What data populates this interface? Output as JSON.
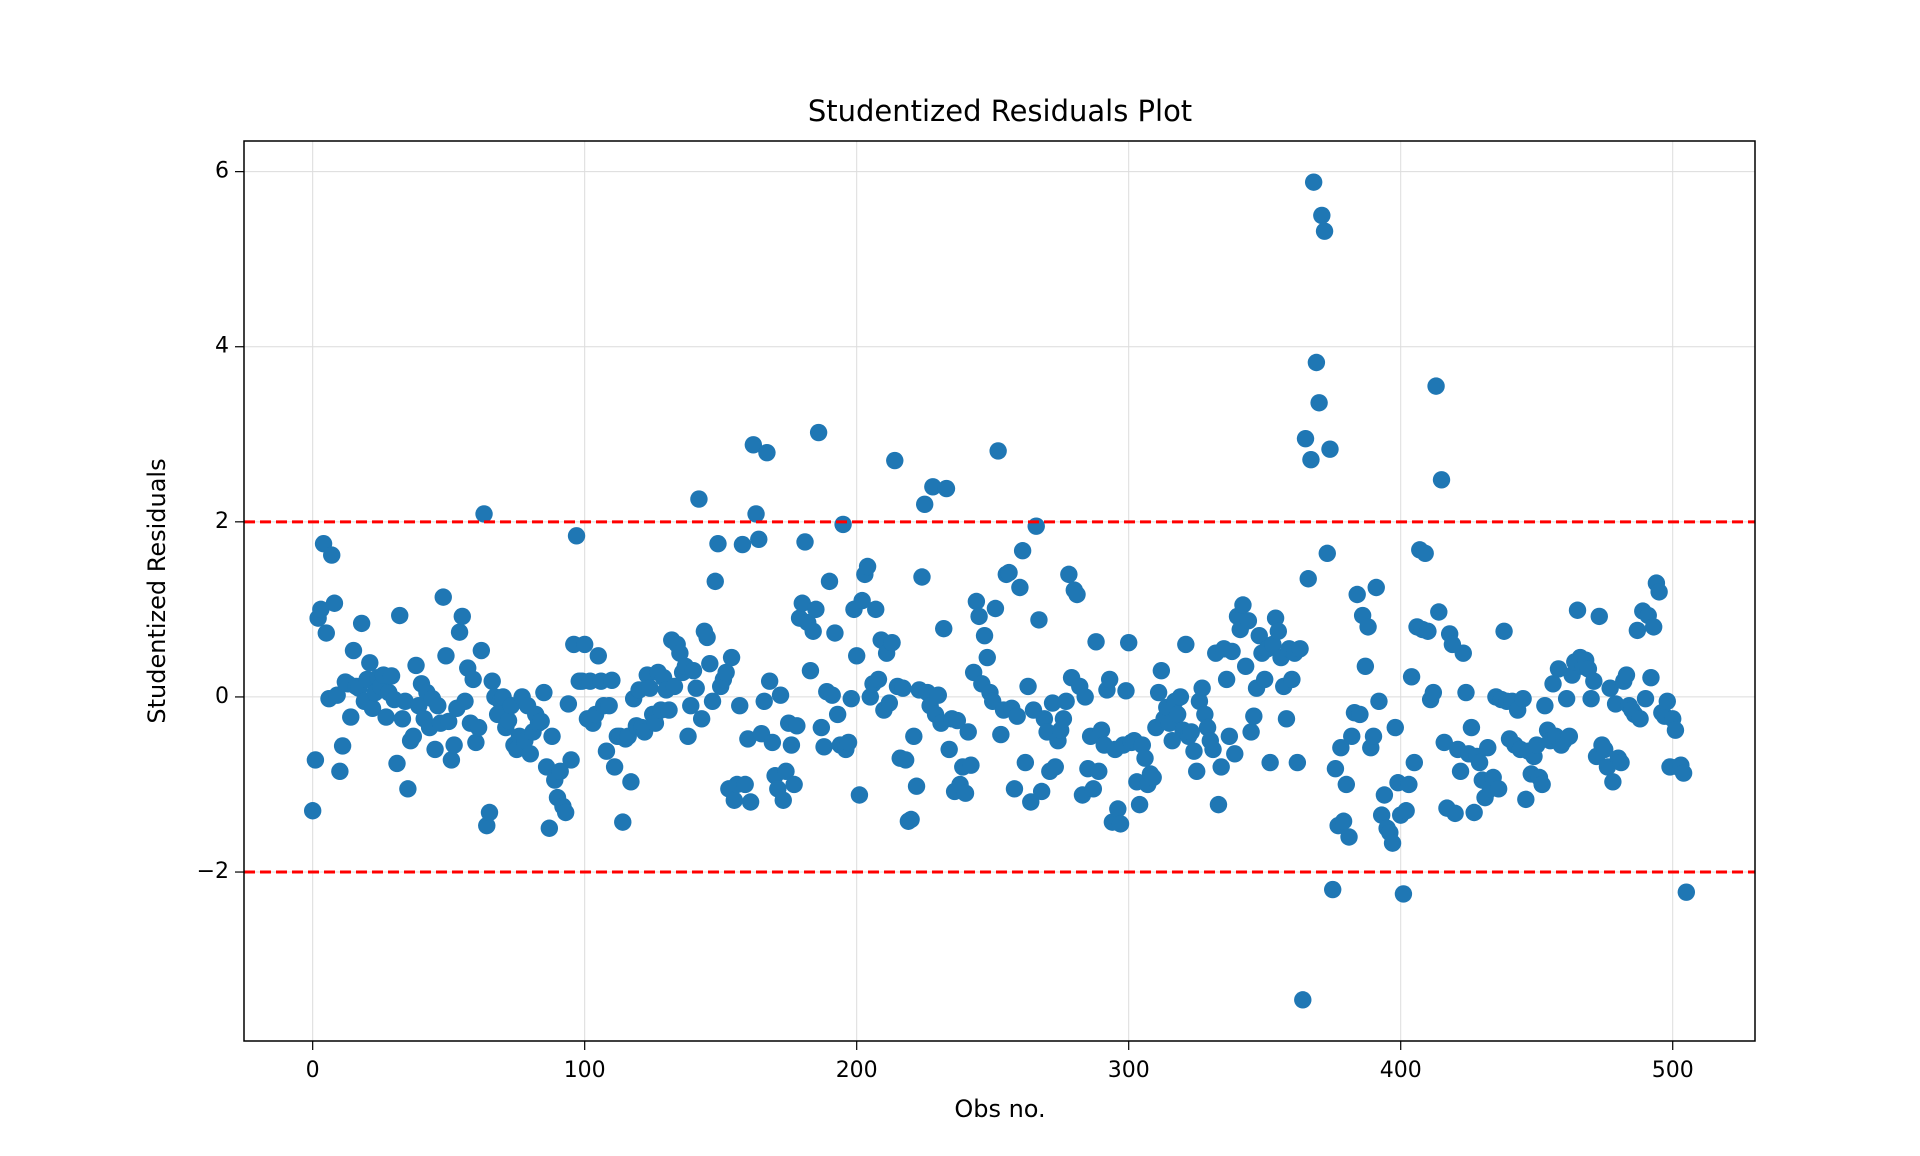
{
  "chart_data": {
    "type": "scatter",
    "title": "Studentized Residuals Plot",
    "xlabel": "Obs no.",
    "ylabel": "Studentized Residuals",
    "color": "#1f77b4",
    "grid": true,
    "xlim": [
      -25.25,
      530.25
    ],
    "ylim": [
      -3.93,
      6.35
    ],
    "xticks": [
      0,
      100,
      200,
      300,
      400,
      500
    ],
    "yticks": [
      {
        "value": -2,
        "label": "−2"
      },
      0,
      2,
      4,
      6
    ],
    "hlines": [
      {
        "value": 2,
        "color": "#ff0000",
        "style": "dashed"
      },
      {
        "value": -2,
        "color": "#ff0000",
        "style": "dashed"
      }
    ],
    "x": [
      0,
      1,
      2,
      3,
      4,
      5,
      6,
      7,
      8,
      9,
      10,
      11,
      12,
      13,
      14,
      15,
      16,
      17,
      18,
      19,
      20,
      21,
      22,
      23,
      24,
      25,
      26,
      27,
      28,
      29,
      30,
      31,
      32,
      33,
      34,
      35,
      36,
      37,
      38,
      39,
      40,
      41,
      42,
      43,
      44,
      45,
      46,
      47,
      48,
      49,
      50,
      51,
      52,
      53,
      54,
      55,
      56,
      57,
      58,
      59,
      60,
      61,
      62,
      63,
      64,
      65,
      66,
      67,
      68,
      69,
      70,
      71,
      72,
      73,
      74,
      75,
      76,
      77,
      78,
      79,
      80,
      81,
      82,
      83,
      84,
      85,
      86,
      87,
      88,
      89,
      90,
      91,
      92,
      93,
      94,
      95,
      96,
      97,
      98,
      99,
      100,
      101,
      102,
      103,
      104,
      105,
      106,
      107,
      108,
      109,
      110,
      111,
      112,
      113,
      114,
      115,
      116,
      117,
      118,
      119,
      120,
      121,
      122,
      123,
      124,
      125,
      126,
      127,
      128,
      129,
      130,
      131,
      132,
      133,
      134,
      135,
      136,
      137,
      138,
      139,
      140,
      141,
      142,
      143,
      144,
      145,
      146,
      147,
      148,
      149,
      150,
      151,
      152,
      153,
      154,
      155,
      156,
      157,
      158,
      159,
      160,
      161,
      162,
      163,
      164,
      165,
      166,
      167,
      168,
      169,
      170,
      171,
      172,
      173,
      174,
      175,
      176,
      177,
      178,
      179,
      180,
      181,
      182,
      183,
      184,
      185,
      186,
      187,
      188,
      189,
      190,
      191,
      192,
      193,
      194,
      195,
      196,
      197,
      198,
      199,
      200,
      201,
      202,
      203,
      204,
      205,
      206,
      207,
      208,
      209,
      210,
      211,
      212,
      213,
      214,
      215,
      216,
      217,
      218,
      219,
      220,
      221,
      222,
      223,
      224,
      225,
      226,
      227,
      228,
      229,
      230,
      231,
      232,
      233,
      234,
      235,
      236,
      237,
      238,
      239,
      240,
      241,
      242,
      243,
      244,
      245,
      246,
      247,
      248,
      249,
      250,
      251,
      252,
      253,
      254,
      255,
      256,
      257,
      258,
      259,
      260,
      261,
      262,
      263,
      264,
      265,
      266,
      267,
      268,
      269,
      270,
      271,
      272,
      273,
      274,
      275,
      276,
      277,
      278,
      279,
      280,
      281,
      282,
      283,
      284,
      285,
      286,
      287,
      288,
      289,
      290,
      291,
      292,
      293,
      294,
      295,
      296,
      297,
      298,
      299,
      300,
      301,
      302,
      303,
      304,
      305,
      306,
      307,
      308,
      309,
      310,
      311,
      312,
      313,
      314,
      315,
      316,
      317,
      318,
      319,
      320,
      321,
      322,
      323,
      324,
      325,
      326,
      327,
      328,
      329,
      330,
      331,
      332,
      333,
      334,
      335,
      336,
      337,
      338,
      339,
      340,
      341,
      342,
      343,
      344,
      345,
      346,
      347,
      348,
      349,
      350,
      351,
      352,
      353,
      354,
      355,
      356,
      357,
      358,
      359,
      360,
      361,
      362,
      363,
      364,
      365,
      366,
      367,
      368,
      369,
      370,
      371,
      372,
      373,
      374,
      375,
      376,
      377,
      378,
      379,
      380,
      381,
      382,
      383,
      384,
      385,
      386,
      387,
      388,
      389,
      390,
      391,
      392,
      393,
      394,
      395,
      396,
      397,
      398,
      399,
      400,
      401,
      402,
      403,
      404,
      405,
      406,
      407,
      408,
      409,
      410,
      411,
      412,
      413,
      414,
      415,
      416,
      417,
      418,
      419,
      420,
      421,
      422,
      423,
      424,
      425,
      426,
      427,
      428,
      429,
      430,
      431,
      432,
      433,
      434,
      435,
      436,
      437,
      438,
      439,
      440,
      441,
      442,
      443,
      444,
      445,
      446,
      447,
      448,
      449,
      450,
      451,
      452,
      453,
      454,
      455,
      456,
      457,
      458,
      459,
      460,
      461,
      462,
      463,
      464,
      465,
      466,
      467,
      468,
      469,
      470,
      471,
      472,
      473,
      474,
      475,
      476,
      477,
      478,
      479,
      480,
      481,
      482,
      483,
      484,
      485,
      486,
      487,
      488,
      489,
      490,
      491,
      492,
      493,
      494,
      495,
      496,
      497,
      498,
      499,
      500,
      501,
      502,
      503,
      504,
      505
    ],
    "values": [
      -1.3,
      -0.72,
      0.9,
      1.0,
      1.75,
      0.73,
      -0.02,
      1.62,
      1.07,
      0.02,
      -0.85,
      -0.56,
      0.17,
      0.15,
      -0.23,
      0.53,
      0.12,
      0.1,
      0.84,
      -0.05,
      0.2,
      0.39,
      -0.13,
      0.05,
      0.22,
      0.12,
      0.25,
      -0.23,
      0.05,
      0.24,
      -0.03,
      -0.76,
      0.93,
      -0.25,
      -0.05,
      -1.05,
      -0.5,
      -0.45,
      0.36,
      -0.1,
      0.15,
      -0.25,
      0.05,
      -0.35,
      -0.02,
      -0.6,
      -0.1,
      -0.3,
      1.14,
      0.47,
      -0.28,
      -0.72,
      -0.55,
      -0.13,
      0.74,
      0.92,
      -0.05,
      0.33,
      -0.3,
      0.2,
      -0.52,
      -0.35,
      0.53,
      2.09,
      -1.47,
      -1.32,
      0.18,
      0.0,
      -0.2,
      -0.05,
      0.0,
      -0.35,
      -0.27,
      -0.1,
      -0.55,
      -0.6,
      -0.45,
      0.0,
      -0.5,
      -0.1,
      -0.65,
      -0.4,
      -0.2,
      -0.3,
      -0.28,
      0.05,
      -0.8,
      -1.5,
      -0.45,
      -0.95,
      -1.15,
      -0.85,
      -1.25,
      -1.32,
      -0.08,
      -0.72,
      0.6,
      1.84,
      0.18,
      0.18,
      0.6,
      -0.25,
      0.18,
      -0.3,
      -0.2,
      0.47,
      0.18,
      -0.1,
      -0.62,
      -0.1,
      0.19,
      -0.8,
      -0.45,
      -0.45,
      -1.43,
      -0.48,
      -0.45,
      -0.97,
      -0.02,
      -0.33,
      0.08,
      -0.35,
      -0.4,
      0.25,
      0.1,
      -0.2,
      -0.3,
      0.28,
      -0.15,
      0.22,
      0.08,
      -0.15,
      0.65,
      0.12,
      0.6,
      0.5,
      0.28,
      0.35,
      -0.45,
      -0.1,
      0.3,
      0.1,
      2.26,
      -0.25,
      0.75,
      0.68,
      0.38,
      -0.05,
      1.32,
      1.75,
      0.12,
      0.2,
      0.28,
      -1.05,
      0.45,
      -1.18,
      -1.0,
      -0.1,
      1.74,
      -1.0,
      -0.48,
      -1.2,
      2.88,
      2.09,
      1.8,
      -0.42,
      -0.05,
      2.79,
      0.18,
      -0.52,
      -0.9,
      -1.05,
      0.02,
      -1.18,
      -0.85,
      -0.3,
      -0.55,
      -1.0,
      -0.33,
      0.9,
      1.07,
      1.77,
      0.85,
      0.3,
      0.75,
      1.0,
      3.02,
      -0.35,
      -0.57,
      0.06,
      1.32,
      0.02,
      0.73,
      -0.2,
      -0.55,
      1.97,
      -0.6,
      -0.52,
      -0.02,
      1.0,
      0.47,
      -1.12,
      1.1,
      1.4,
      1.49,
      0.0,
      0.15,
      1.0,
      0.2,
      0.65,
      -0.15,
      0.5,
      -0.07,
      0.62,
      2.7,
      0.12,
      -0.7,
      0.1,
      -0.72,
      -1.42,
      -1.4,
      -0.45,
      -1.02,
      0.08,
      1.37,
      2.2,
      0.05,
      -0.1,
      2.4,
      -0.2,
      0.02,
      -0.3,
      0.78,
      2.38,
      -0.6,
      -0.25,
      -1.08,
      -0.27,
      -1.0,
      -0.8,
      -1.1,
      -0.4,
      -0.78,
      0.28,
      1.09,
      0.92,
      0.15,
      0.7,
      0.45,
      0.05,
      -0.05,
      1.01,
      2.81,
      -0.43,
      -0.15,
      1.4,
      1.42,
      -0.13,
      -1.05,
      -0.22,
      1.25,
      1.67,
      -0.75,
      0.12,
      -1.2,
      -0.15,
      1.95,
      0.88,
      -1.08,
      -0.25,
      -0.4,
      -0.85,
      -0.07,
      -0.8,
      -0.5,
      -0.38,
      -0.25,
      -0.05,
      1.4,
      0.22,
      1.22,
      1.17,
      0.12,
      -1.12,
      0.0,
      -0.82,
      -0.45,
      -1.05,
      0.63,
      -0.85,
      -0.38,
      -0.55,
      0.08,
      0.2,
      -1.43,
      -0.6,
      -1.28,
      -1.45,
      -0.55,
      0.07,
      0.62,
      -0.52,
      -0.5,
      -0.97,
      -1.23,
      -0.55,
      -0.7,
      -1.0,
      -0.88,
      -0.92,
      -0.35,
      0.05,
      0.3,
      -0.25,
      -0.12,
      -0.3,
      -0.5,
      -0.05,
      -0.2,
      0.0,
      -0.38,
      0.6,
      -0.45,
      -0.4,
      -0.62,
      -0.85,
      -0.05,
      0.1,
      -0.2,
      -0.35,
      -0.5,
      -0.6,
      0.5,
      -1.23,
      -0.8,
      0.55,
      0.2,
      -0.45,
      0.52,
      -0.65,
      0.92,
      0.77,
      1.05,
      0.35,
      0.87,
      -0.4,
      -0.22,
      0.1,
      0.7,
      0.5,
      0.2,
      0.55,
      -0.75,
      0.6,
      0.9,
      0.75,
      0.45,
      0.12,
      -0.25,
      0.55,
      0.2,
      0.5,
      -0.75,
      0.55,
      -3.46,
      2.95,
      1.35,
      2.71,
      5.88,
      3.82,
      3.36,
      5.5,
      5.32,
      1.64,
      2.83,
      -2.2,
      -0.82,
      -1.47,
      -0.58,
      -1.42,
      -1.0,
      -1.6,
      -0.45,
      -0.18,
      1.17,
      -0.2,
      0.93,
      0.35,
      0.8,
      -0.58,
      -0.45,
      1.25,
      -0.05,
      -1.35,
      -1.12,
      -1.5,
      -1.55,
      -1.67,
      -0.35,
      -0.98,
      -1.35,
      -2.25,
      -1.3,
      -1.0,
      0.23,
      -0.75,
      0.8,
      1.68,
      0.77,
      1.64,
      0.75,
      -0.03,
      0.05,
      3.55,
      0.97,
      2.48,
      -0.52,
      -1.27,
      0.72,
      0.6,
      -1.33,
      -0.6,
      -0.85,
      0.5,
      0.05,
      -0.65,
      -0.35,
      -1.32,
      -0.68,
      -0.75,
      -0.95,
      -1.15,
      -0.58,
      -1.05,
      -0.92,
      0.0,
      -1.05,
      -0.03,
      0.75,
      -0.05,
      -0.48,
      -0.05,
      -0.55,
      -0.15,
      -0.6,
      -0.02,
      -1.17,
      -0.62,
      -0.88,
      -0.68,
      -0.55,
      -0.92,
      -1.0,
      -0.1,
      -0.38,
      -0.5,
      0.15,
      -0.45,
      0.32,
      -0.55,
      -0.5,
      -0.02,
      -0.45,
      0.25,
      0.4,
      0.99,
      0.45,
      0.35,
      0.42,
      0.32,
      -0.02,
      0.18,
      -0.68,
      0.92,
      -0.55,
      -0.6,
      -0.8,
      0.1,
      -0.97,
      -0.08,
      -0.7,
      -0.75,
      0.18,
      0.25,
      -0.1,
      -0.15,
      -0.2,
      0.76,
      -0.25,
      0.98,
      -0.02,
      0.93,
      0.22,
      0.8,
      1.3,
      1.2,
      -0.18,
      -0.22,
      -0.05,
      -0.8,
      -0.25,
      -0.38,
      -0.8,
      -0.78,
      -0.87,
      -2.23
    ]
  }
}
